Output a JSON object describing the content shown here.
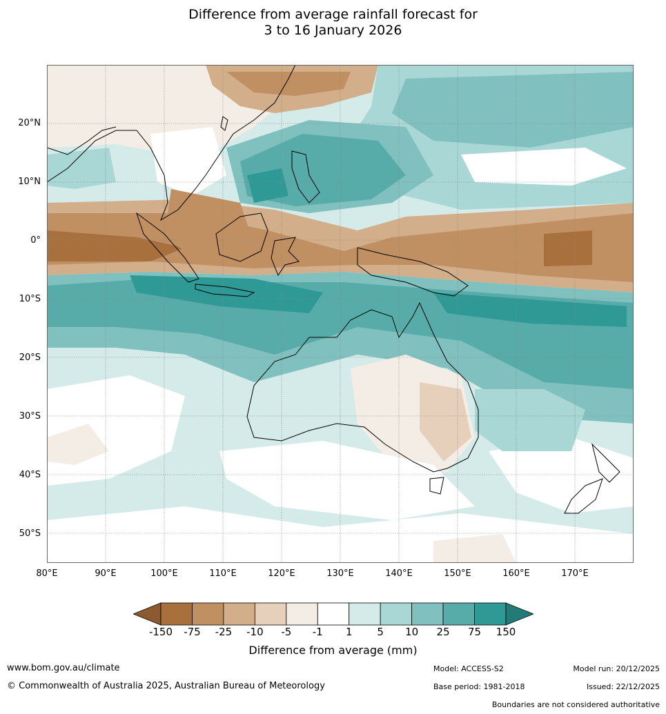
{
  "title_line1": "Difference from average rainfall forecast for",
  "title_line2": "3 to 16 January 2026",
  "latitudes": [
    "20°N",
    "10°N",
    "0°",
    "10°S",
    "20°S",
    "30°S",
    "40°S",
    "50°S"
  ],
  "longitudes": [
    "80°E",
    "90°E",
    "100°E",
    "110°E",
    "120°E",
    "130°E",
    "140°E",
    "150°E",
    "160°E",
    "170°E"
  ],
  "colorbar": {
    "label": "Difference from average (mm)",
    "ticks": [
      "-150",
      "-75",
      "-25",
      "-10",
      "-5",
      "-1",
      "1",
      "5",
      "10",
      "25",
      "75",
      "150"
    ],
    "colors": [
      "#8c5a2e",
      "#a8703c",
      "#c08f62",
      "#d2ae8a",
      "#e6d0bc",
      "#f3ede6",
      "#ffffff",
      "#d4ebea",
      "#a9d7d6",
      "#80c1bf",
      "#57aba9",
      "#2f9996",
      "#237b78"
    ]
  },
  "footer": {
    "website": "www.bom.gov.au/climate",
    "copyright": "© Commonwealth of Australia 2025, Australian Bureau of Meteorology",
    "model": "Model: ACCESS-S2",
    "base_period": "Base period: 1981-2018",
    "model_run": "Model run: 20/12/2025",
    "issued": "Issued: 22/12/2025",
    "disclaimer": "Boundaries are not considered authoritative"
  }
}
